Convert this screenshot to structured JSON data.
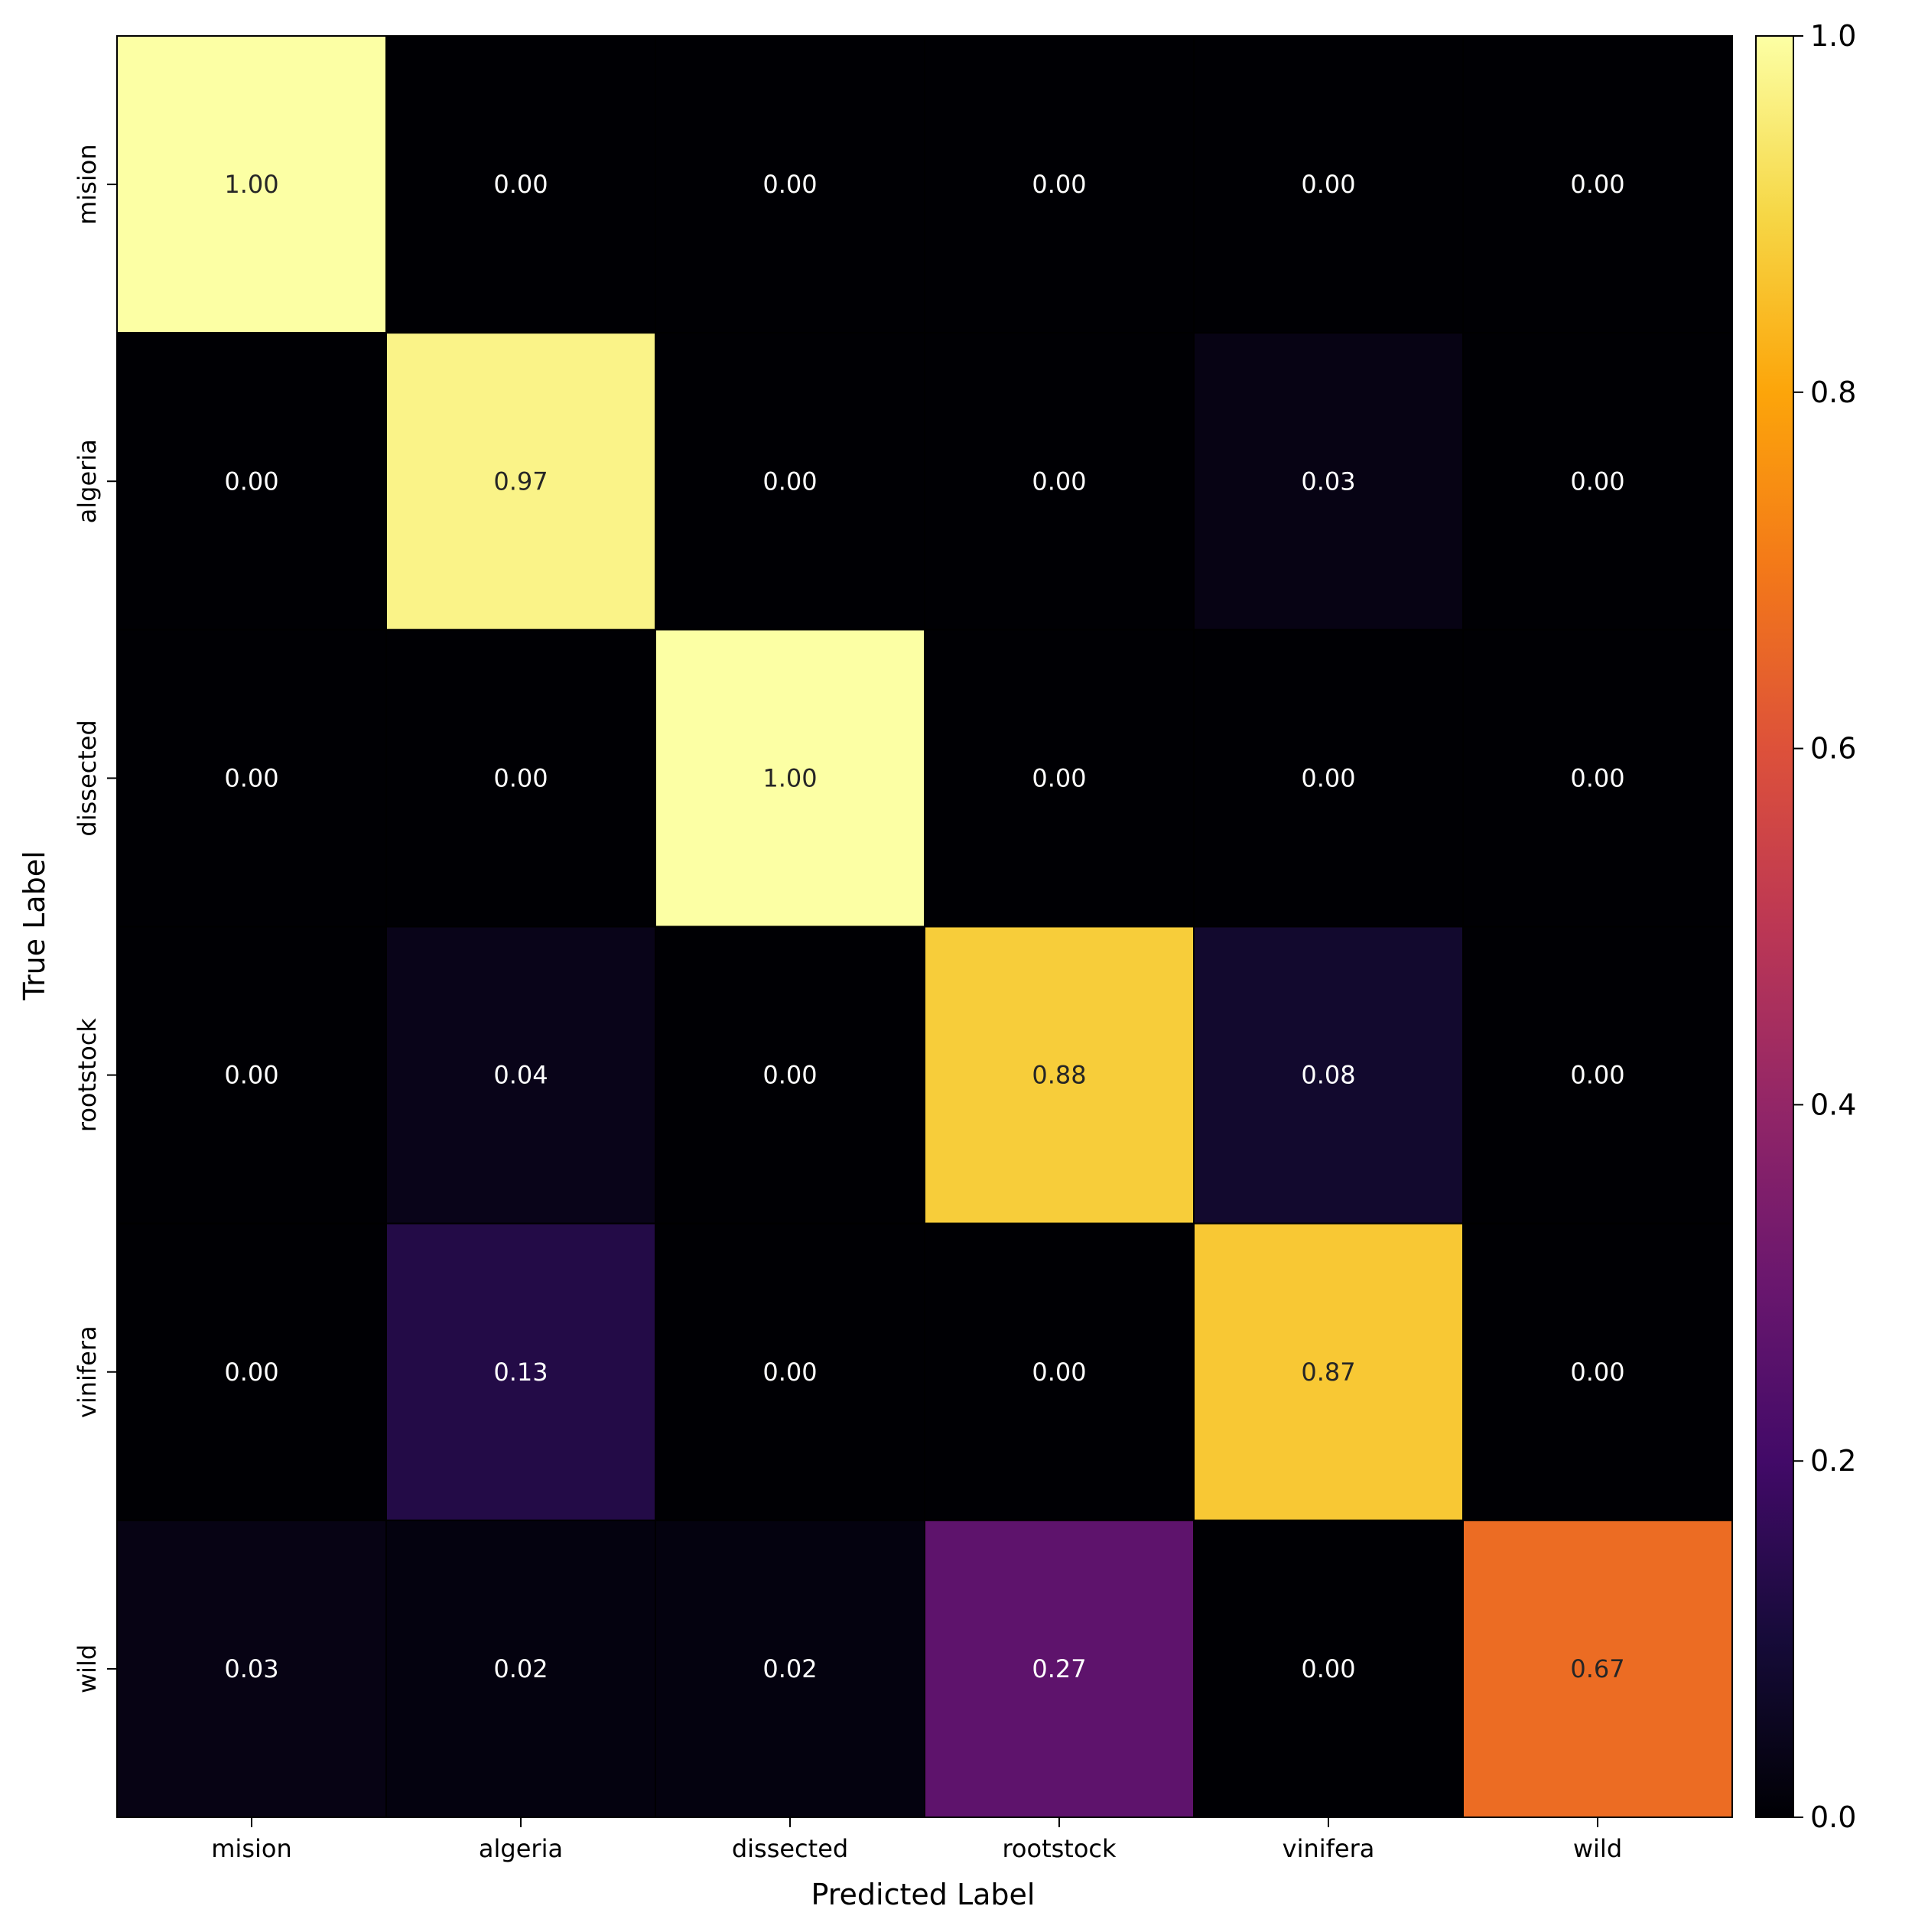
{
  "chart_data": {
    "type": "heatmap",
    "title": "",
    "xlabel": "Predicted Label",
    "ylabel": "True Label",
    "x_categories": [
      "mision",
      "algeria",
      "dissected",
      "rootstock",
      "vinifera",
      "wild"
    ],
    "y_categories": [
      "mision",
      "algeria",
      "dissected",
      "rootstock",
      "vinifera",
      "wild"
    ],
    "values": [
      [
        1.0,
        0.0,
        0.0,
        0.0,
        0.0,
        0.0
      ],
      [
        0.0,
        0.97,
        0.0,
        0.0,
        0.03,
        0.0
      ],
      [
        0.0,
        0.0,
        1.0,
        0.0,
        0.0,
        0.0
      ],
      [
        0.0,
        0.04,
        0.0,
        0.88,
        0.08,
        0.0
      ],
      [
        0.0,
        0.13,
        0.0,
        0.0,
        0.87,
        0.0
      ],
      [
        0.03,
        0.02,
        0.02,
        0.27,
        0.0,
        0.67
      ]
    ],
    "cell_labels": [
      [
        "1.00",
        "0.00",
        "0.00",
        "0.00",
        "0.00",
        "0.00"
      ],
      [
        "0.00",
        "0.97",
        "0.00",
        "0.00",
        "0.03",
        "0.00"
      ],
      [
        "0.00",
        "0.00",
        "1.00",
        "0.00",
        "0.00",
        "0.00"
      ],
      [
        "0.00",
        "0.04",
        "0.00",
        "0.88",
        "0.08",
        "0.00"
      ],
      [
        "0.00",
        "0.13",
        "0.00",
        "0.00",
        "0.87",
        "0.00"
      ],
      [
        "0.03",
        "0.02",
        "0.02",
        "0.27",
        "0.00",
        "0.67"
      ]
    ],
    "colormap": "inferno",
    "vmin": 0.0,
    "vmax": 1.0,
    "colorbar": {
      "ticks": [
        0.0,
        0.2,
        0.4,
        0.6,
        0.8,
        1.0
      ],
      "tick_labels": [
        "0.0",
        "0.2",
        "0.4",
        "0.6",
        "0.8",
        "1.0"
      ],
      "placement": "right"
    },
    "grid": false
  }
}
